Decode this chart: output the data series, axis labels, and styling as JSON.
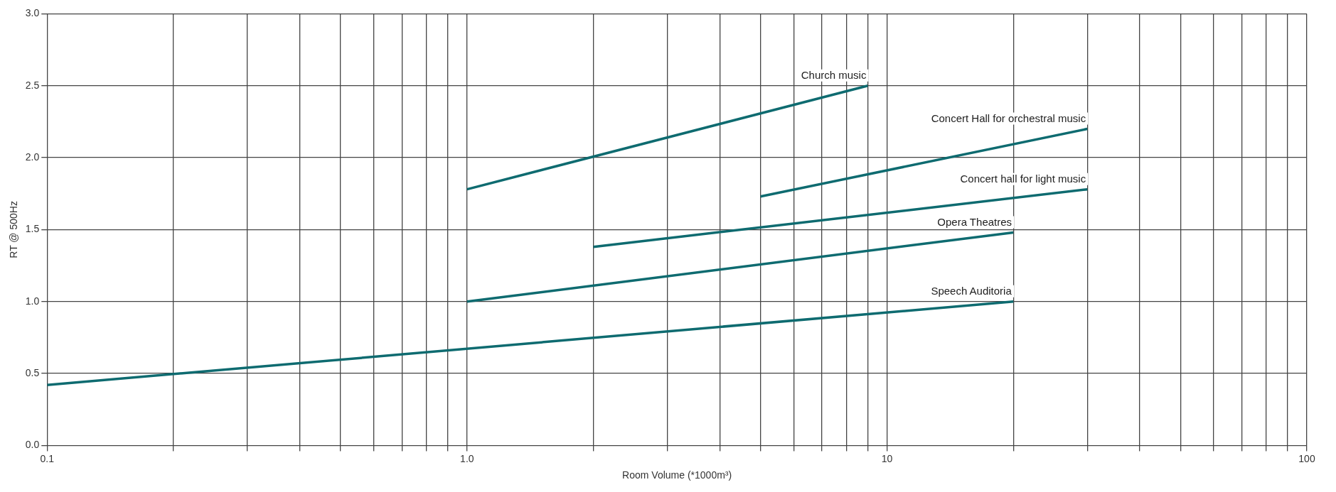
{
  "chart_data": {
    "type": "line",
    "xlabel": "Room Volume (*1000m³)",
    "ylabel": "RT @ 500Hz",
    "log": "x",
    "grid": true,
    "legend": false,
    "marker": "none",
    "line_style": "solid",
    "xlim": [
      0.1,
      100
    ],
    "xticks": [
      {
        "value": 0.1,
        "label": "0.1"
      },
      {
        "value": 0.2,
        "label": null
      },
      {
        "value": 0.3,
        "label": null
      },
      {
        "value": 0.4,
        "label": null
      },
      {
        "value": 0.5,
        "label": null
      },
      {
        "value": 0.6,
        "label": null
      },
      {
        "value": 0.7,
        "label": null
      },
      {
        "value": 0.8,
        "label": null
      },
      {
        "value": 0.9,
        "label": null
      },
      {
        "value": 1,
        "label": "1.0"
      },
      {
        "value": 2,
        "label": null
      },
      {
        "value": 3,
        "label": null
      },
      {
        "value": 4,
        "label": null
      },
      {
        "value": 5,
        "label": null
      },
      {
        "value": 6,
        "label": null
      },
      {
        "value": 7,
        "label": null
      },
      {
        "value": 8,
        "label": null
      },
      {
        "value": 9,
        "label": null
      },
      {
        "value": 10,
        "label": "10"
      },
      {
        "value": 20,
        "label": null
      },
      {
        "value": 30,
        "label": null
      },
      {
        "value": 40,
        "label": null
      },
      {
        "value": 50,
        "label": null
      },
      {
        "value": 60,
        "label": null
      },
      {
        "value": 70,
        "label": null
      },
      {
        "value": 80,
        "label": null
      },
      {
        "value": 90,
        "label": null
      },
      {
        "value": 100,
        "label": "100"
      }
    ],
    "ylim": [
      0,
      3
    ],
    "yticks": [
      {
        "value": 0,
        "label": "0.0"
      },
      {
        "value": 0.5,
        "label": "0.5"
      },
      {
        "value": 1,
        "label": "1.0"
      },
      {
        "value": 1.5,
        "label": "1.5"
      },
      {
        "value": 2,
        "label": "2.0"
      },
      {
        "value": 2.5,
        "label": "2.5"
      },
      {
        "value": 3,
        "label": "3.0"
      }
    ],
    "series": [
      {
        "name": "Church music",
        "color": "#0e6b70",
        "x": [
          1,
          9
        ],
        "values": [
          1.78,
          2.5
        ]
      },
      {
        "name": "Concert Hall for orchestral music",
        "color": "#0e6b70",
        "x": [
          5,
          30
        ],
        "values": [
          1.73,
          2.2
        ]
      },
      {
        "name": "Concert hall for light music",
        "color": "#0e6b70",
        "x": [
          2,
          30
        ],
        "values": [
          1.38,
          1.78
        ]
      },
      {
        "name": "Opera Theatres",
        "color": "#0e6b70",
        "x": [
          1,
          20
        ],
        "values": [
          1.0,
          1.48
        ]
      },
      {
        "name": "Speech Auditoria",
        "color": "#0e6b70",
        "x": [
          0.1,
          20
        ],
        "values": [
          0.42,
          1.0
        ]
      }
    ]
  }
}
